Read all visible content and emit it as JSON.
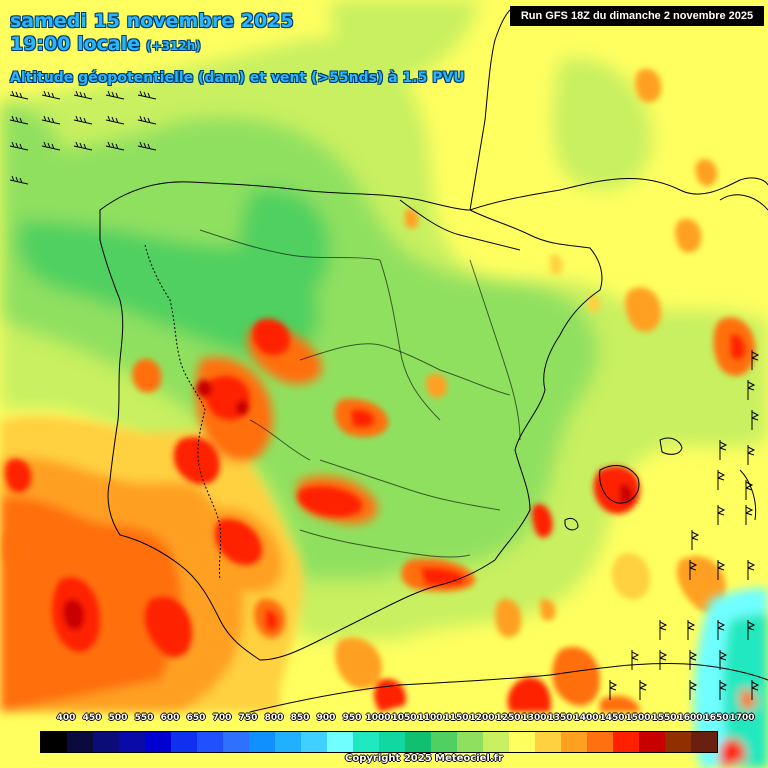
{
  "header": {
    "date": "samedi 15 novembre 2025",
    "time": "19:00 locale",
    "lead_time": "(+312h)",
    "parameter": "Altitude géopotentielle (dam) et vent (>55nds) à 1.5 PVU"
  },
  "run_info": "Run GFS 18Z du dimanche 2 novembre 2025",
  "legend": {
    "labels": [
      "400",
      "450",
      "500",
      "550",
      "600",
      "650",
      "700",
      "750",
      "800",
      "850",
      "900",
      "950",
      "1000",
      "1050",
      "1100",
      "1150",
      "1200",
      "1250",
      "1300",
      "1350",
      "1400",
      "1450",
      "1500",
      "1550",
      "1600",
      "1650",
      "1700"
    ],
    "colors": [
      "#000000",
      "#0a0a3c",
      "#0c0c78",
      "#0a0aa8",
      "#0000d0",
      "#1030f0",
      "#2050ff",
      "#3070ff",
      "#1090ff",
      "#20b0ff",
      "#40d0ff",
      "#70ffff",
      "#20e8c0",
      "#10d8a0",
      "#10c070",
      "#50d060",
      "#90e060",
      "#c8f060",
      "#ffff60",
      "#ffd040",
      "#ffa020",
      "#ff7010",
      "#ff2000",
      "#c80000",
      "#903000",
      "#6a2010"
    ]
  },
  "copyright": "Copyright 2025 Meteociel.fr",
  "wind_barb_style": "barb-with-flags",
  "map": {
    "region": "Iberian Peninsula",
    "background_color": "#ffff60",
    "border_color": "#000000"
  }
}
